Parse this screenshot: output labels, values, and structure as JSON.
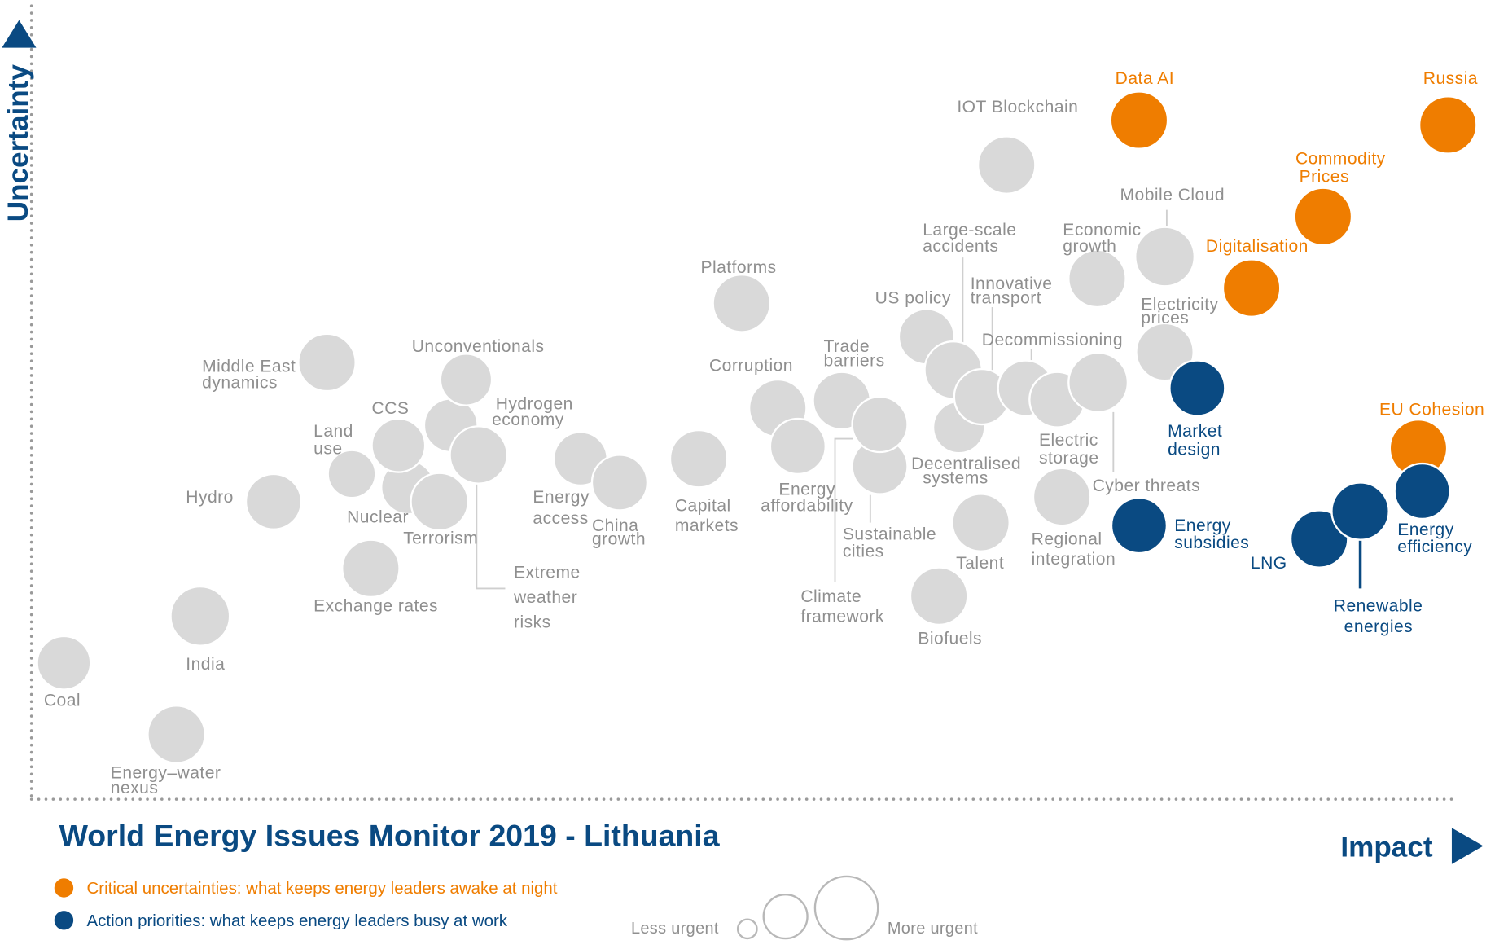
{
  "chart_data": {
    "type": "scatter",
    "title": "World Energy Issues Monitor 2019 - Lithuania",
    "xlabel": "Impact",
    "ylabel": "Uncertainty",
    "grid": false,
    "groups": {
      "critical": {
        "color": "#ef7d00",
        "label_color": "#ef7d00"
      },
      "action": {
        "color": "#0a4a82",
        "label_color": "#0a4a82"
      },
      "other": {
        "color": "#d9d9d9",
        "label_color": "#8f8f8f"
      }
    },
    "axis_color": "#0a4a82",
    "points": [
      {
        "id": "coal",
        "label": [
          "Coal"
        ],
        "group": "other"
      },
      {
        "id": "india",
        "label": [
          "India"
        ],
        "group": "other"
      },
      {
        "id": "energy_water",
        "label": [
          "Energy–water",
          "nexus"
        ],
        "group": "other"
      },
      {
        "id": "hydro",
        "label": [
          "Hydro"
        ],
        "group": "other"
      },
      {
        "id": "middle_east",
        "label": [
          "Middle East",
          "dynamics"
        ],
        "group": "other"
      },
      {
        "id": "exchange_rates",
        "label": [
          "Exchange rates"
        ],
        "group": "other"
      },
      {
        "id": "land_use",
        "label": [
          "Land",
          "use"
        ],
        "group": "other"
      },
      {
        "id": "hydrogen",
        "label": [
          "Hydrogen",
          "economy"
        ],
        "group": "other"
      },
      {
        "id": "unconventionals",
        "label": [
          "Unconventionals"
        ],
        "group": "other"
      },
      {
        "id": "nuclear",
        "label": [
          "Nuclear"
        ],
        "group": "other"
      },
      {
        "id": "ccs",
        "label": [
          "CCS"
        ],
        "group": "other"
      },
      {
        "id": "terrorism",
        "label": [
          "Terrorism"
        ],
        "group": "other"
      },
      {
        "id": "extreme_weather",
        "label": [
          "Extreme",
          "weather",
          "risks"
        ],
        "group": "other"
      },
      {
        "id": "energy_access",
        "label": [
          "Energy",
          "access"
        ],
        "group": "other"
      },
      {
        "id": "china_growth",
        "label": [
          "China",
          "growth"
        ],
        "group": "other"
      },
      {
        "id": "capital_markets",
        "label": [
          "Capital",
          "markets"
        ],
        "group": "other"
      },
      {
        "id": "platforms",
        "label": [
          "Platforms"
        ],
        "group": "other"
      },
      {
        "id": "corruption",
        "label": [
          "Corruption"
        ],
        "group": "other"
      },
      {
        "id": "energy_affordability",
        "label": [
          "Energy",
          "affordability"
        ],
        "group": "other"
      },
      {
        "id": "trade_barriers",
        "label": [
          "Trade",
          "barriers"
        ],
        "group": "other"
      },
      {
        "id": "sustainable_cities",
        "label": [
          "Sustainable",
          "cities"
        ],
        "group": "other"
      },
      {
        "id": "climate_framework",
        "label": [
          "Climate",
          "framework"
        ],
        "group": "other"
      },
      {
        "id": "us_policy",
        "label": [
          "US policy"
        ],
        "group": "other"
      },
      {
        "id": "decentralised",
        "label": [
          "Decentralised",
          "systems"
        ],
        "group": "other"
      },
      {
        "id": "large_scale",
        "label": [
          "Large-scale",
          "accidents"
        ],
        "group": "other"
      },
      {
        "id": "innovative_transport",
        "label": [
          "Innovative",
          "transport"
        ],
        "group": "other"
      },
      {
        "id": "decommissioning",
        "label": [
          "Decommissioning"
        ],
        "group": "other"
      },
      {
        "id": "electric_storage",
        "label": [
          "Electric",
          "storage"
        ],
        "group": "other"
      },
      {
        "id": "economic_growth",
        "label": [
          "Economic",
          "growth"
        ],
        "group": "other"
      },
      {
        "id": "cyber_threats",
        "label": [
          "Cyber threats"
        ],
        "group": "other"
      },
      {
        "id": "talent",
        "label": [
          "Talent"
        ],
        "group": "other"
      },
      {
        "id": "biofuels",
        "label": [
          "Biofuels"
        ],
        "group": "other"
      },
      {
        "id": "regional_integration",
        "label": [
          "Regional",
          "integration"
        ],
        "group": "other"
      },
      {
        "id": "iot_blockchain",
        "label": [
          "IOT Blockchain"
        ],
        "group": "other"
      },
      {
        "id": "mobile_cloud",
        "label": [
          "Mobile Cloud"
        ],
        "group": "other"
      },
      {
        "id": "electricity_prices",
        "label": [
          "Electricity",
          "prices"
        ],
        "group": "other"
      },
      {
        "id": "data_ai",
        "label": [
          "Data AI"
        ],
        "group": "critical"
      },
      {
        "id": "russia",
        "label": [
          "Russia"
        ],
        "group": "critical"
      },
      {
        "id": "commodity_prices",
        "label": [
          "Commodity",
          "Prices"
        ],
        "group": "critical"
      },
      {
        "id": "digitalisation",
        "label": [
          "Digitalisation"
        ],
        "group": "critical"
      },
      {
        "id": "eu_cohesion",
        "label": [
          "EU Cohesion"
        ],
        "group": "critical"
      },
      {
        "id": "market_design",
        "label": [
          "Market",
          "design"
        ],
        "group": "action"
      },
      {
        "id": "energy_subsidies",
        "label": [
          "Energy",
          "subsidies"
        ],
        "group": "action"
      },
      {
        "id": "lng",
        "label": [
          "LNG"
        ],
        "group": "action"
      },
      {
        "id": "renewable_energies",
        "label": [
          "Renewable",
          "energies"
        ],
        "group": "action"
      },
      {
        "id": "energy_efficiency",
        "label": [
          "Energy",
          "efficiency"
        ],
        "group": "action"
      }
    ]
  },
  "legend": {
    "critical": "Critical uncertainties: what keeps energy leaders awake at night",
    "action": "Action priorities: what keeps energy leaders busy at work"
  },
  "size_legend": {
    "less": "Less urgent",
    "more": "More urgent"
  }
}
